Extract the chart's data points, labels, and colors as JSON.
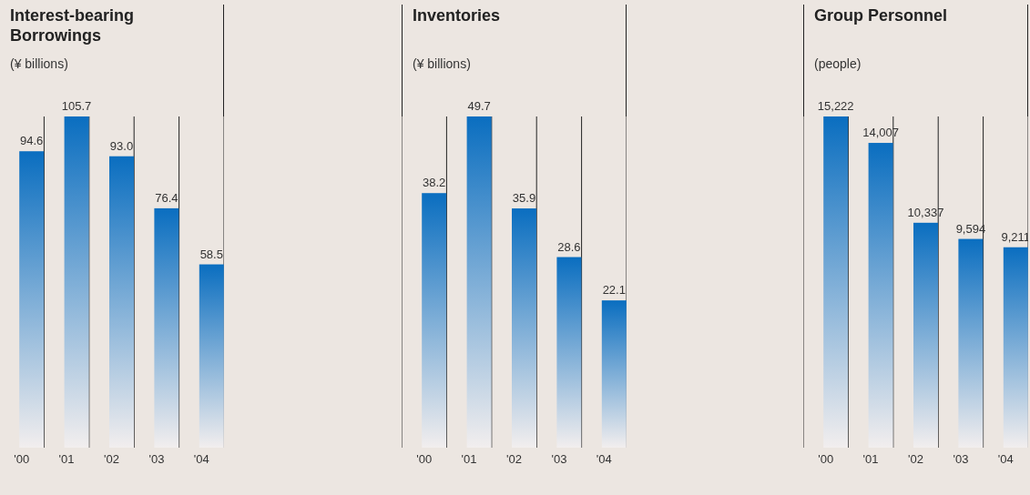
{
  "chart_data": [
    {
      "type": "bar",
      "title": "Interest-bearing Borrowings",
      "subtitle": "(¥ billions)",
      "categories": [
        "'00",
        "'01",
        "'02",
        "'03",
        "'04"
      ],
      "values": [
        94.6,
        105.7,
        93.0,
        76.4,
        58.5
      ],
      "value_labels": [
        "94.6",
        "105.7",
        "93.0",
        "76.4",
        "58.5"
      ],
      "color": "#0a6ec0",
      "grid": "x"
    },
    {
      "type": "bar",
      "title": "Inventories",
      "subtitle": "(¥ billions)",
      "categories": [
        "'00",
        "'01",
        "'02",
        "'03",
        "'04"
      ],
      "values": [
        38.2,
        49.7,
        35.9,
        28.6,
        22.1
      ],
      "value_labels": [
        "38.2",
        "49.7",
        "35.9",
        "28.6",
        "22.1"
      ],
      "color": "#0a6ec0",
      "grid": "x"
    },
    {
      "type": "bar",
      "title": "Group Personnel",
      "subtitle": "(people)",
      "categories": [
        "'00",
        "'01",
        "'02",
        "'03",
        "'04"
      ],
      "values": [
        15222,
        14007,
        10337,
        9594,
        9211
      ],
      "value_labels": [
        "15,222",
        "14,007",
        "10,337",
        "9,594",
        "9,211"
      ],
      "color": "#0a6ec0",
      "grid": "x"
    }
  ]
}
